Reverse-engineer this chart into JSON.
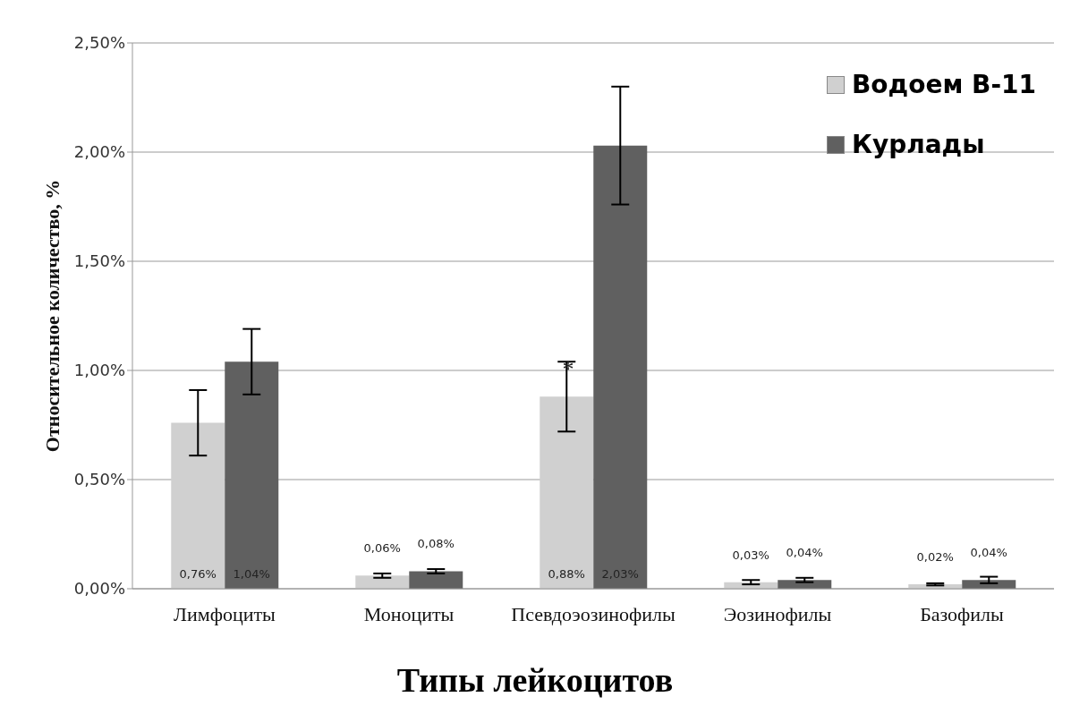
{
  "chart_data": {
    "type": "bar",
    "xlabel": "Типы лейкоцитов",
    "ylabel": "Относительное количество, %",
    "categories": [
      "Лимфоциты",
      "Моноциты",
      "Псевдоэозинофилы",
      "Эозинофилы",
      "Базофилы"
    ],
    "series": [
      {
        "name": "Водоем В-11",
        "color": "#d0d0d0",
        "values": [
          0.76,
          0.06,
          0.88,
          0.03,
          0.02
        ],
        "errors": [
          0.15,
          0.01,
          0.16,
          0.01,
          0.005
        ],
        "value_labels": [
          "0,76%",
          "0,06%",
          "0,88%",
          "0,03%",
          "0,02%"
        ]
      },
      {
        "name": "Курлады",
        "color": "#606060",
        "values": [
          1.04,
          0.08,
          2.03,
          0.04,
          0.04
        ],
        "errors": [
          0.15,
          0.01,
          0.27,
          0.01,
          0.015
        ],
        "value_labels": [
          "1,04%",
          "0,08%",
          "2,03%",
          "0,04%",
          "0,04%"
        ]
      }
    ],
    "ylim": [
      0,
      2.5
    ],
    "yticks": [
      {
        "value": 0,
        "label": "0,00%"
      },
      {
        "value": 0.5,
        "label": "0,50%"
      },
      {
        "value": 1,
        "label": "1,00%"
      },
      {
        "value": 1.5,
        "label": "1,50%"
      },
      {
        "value": 2,
        "label": "2,00%"
      },
      {
        "value": 2.5,
        "label": "2,50%"
      }
    ],
    "grid": "y",
    "legend": "top right",
    "annotations": [
      {
        "text": "*",
        "x": "Псевдоэозинофилы",
        "y": 0.97
      }
    ]
  }
}
